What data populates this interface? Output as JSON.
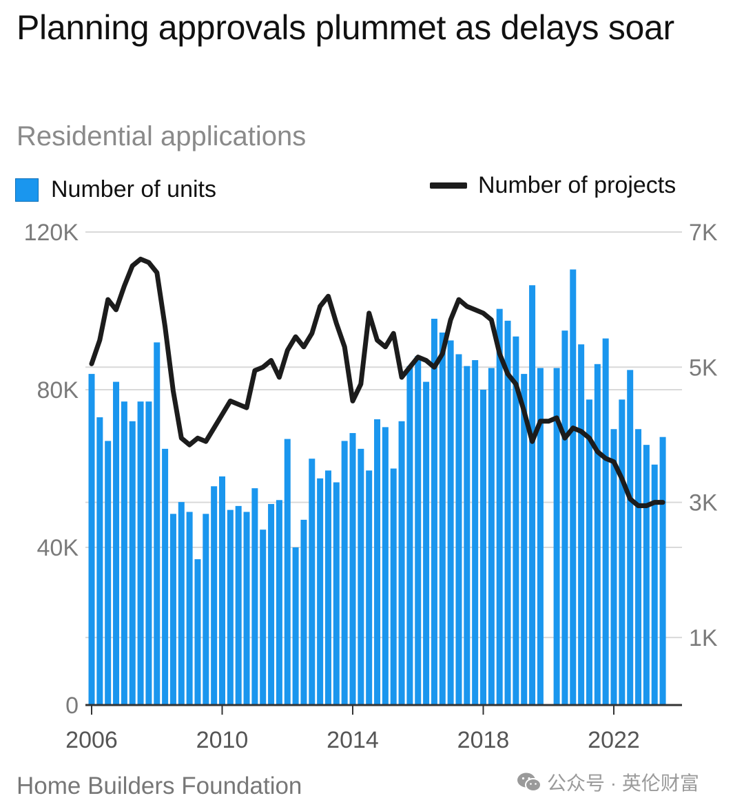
{
  "title": "Planning approvals plummet as delays soar",
  "subtitle": "Residential applications",
  "source": "Home Builders Foundation",
  "watermark": {
    "icon": "wechat-icon",
    "text": "公众号 · 英伦财富"
  },
  "legend": {
    "units": "Number of units",
    "projects": "Number of projects"
  },
  "colors": {
    "bars": "#1a96ee",
    "line": "#1c1c1c",
    "grid": "#d9d9d9",
    "axis": "#333333",
    "tick_text": "#7a7a7a"
  },
  "chart_data": {
    "type": "bar+line",
    "title": "Planning approvals plummet as delays soar",
    "subtitle": "Residential applications",
    "x_ticks": [
      "2006",
      "2010",
      "2014",
      "2018",
      "2022"
    ],
    "x_start": 2006.0,
    "x_step": 0.25,
    "left_axis": {
      "ticks": [
        "0",
        "40K",
        "80K",
        "120K"
      ],
      "ylim": [
        0,
        120000
      ]
    },
    "right_axis": {
      "ticks": [
        "1K",
        "3K",
        "5K",
        "7K"
      ],
      "ylim": [
        0,
        7000
      ]
    },
    "grid": true,
    "legend_position": "top",
    "series": [
      {
        "name": "Number of units",
        "type": "bar",
        "axis": "left",
        "values": [
          84000,
          73000,
          67000,
          82000,
          77000,
          72000,
          77000,
          77000,
          92000,
          65000,
          48500,
          51500,
          49000,
          37000,
          48500,
          55500,
          58000,
          49500,
          50500,
          49000,
          55000,
          44500,
          51000,
          52000,
          67500,
          40000,
          47000,
          62500,
          57500,
          59500,
          56500,
          67000,
          69000,
          65000,
          59500,
          72500,
          70500,
          60000,
          72000,
          86000,
          88500,
          82000,
          98000,
          94500,
          92500,
          89000,
          86000,
          87500,
          80000,
          85500,
          100500,
          97500,
          93500,
          84000,
          106500,
          85500,
          null,
          85500,
          95000,
          110500,
          91500,
          77500,
          86500,
          93000,
          70000,
          77500,
          85000,
          70000,
          66000,
          61000,
          68000
        ]
      },
      {
        "name": "Number of projects",
        "type": "line",
        "axis": "right",
        "values": [
          5050,
          5400,
          6000,
          5850,
          6200,
          6500,
          6600,
          6550,
          6400,
          5600,
          4650,
          3950,
          3850,
          3950,
          3900,
          4100,
          4300,
          4500,
          4450,
          4400,
          4950,
          5000,
          5100,
          4850,
          5250,
          5450,
          5300,
          5500,
          5900,
          6050,
          5650,
          5300,
          4500,
          4750,
          5800,
          5400,
          5300,
          5500,
          4850,
          5000,
          5150,
          5100,
          5000,
          5200,
          5700,
          6000,
          5900,
          5850,
          5800,
          5700,
          5200,
          4900,
          4750,
          4350,
          3900,
          4200,
          4200,
          4250,
          3950,
          4100,
          4050,
          3950,
          3750,
          3650,
          3600,
          3350,
          3050,
          2950,
          2950,
          3000,
          3000
        ]
      }
    ]
  }
}
